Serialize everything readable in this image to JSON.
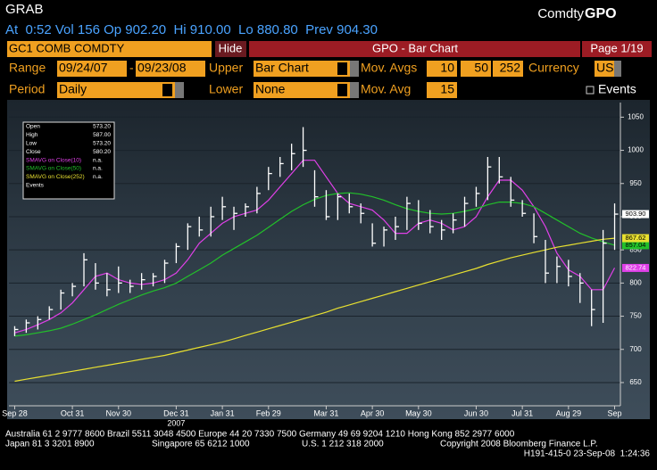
{
  "header": {
    "title": "GRAB",
    "brand": "Comdty",
    "brand_code": "GPO",
    "quote": "At  0:52 Vol 156 Op 902.20  Hi 910.00  Lo 880.80  Prev 904.30"
  },
  "toolbar": {
    "security": "GC1 COMB COMDTY",
    "hide_button": "Hide",
    "screen_title": "GPO - Bar Chart",
    "page": "Page 1/19"
  },
  "settings": {
    "range_label": "Range",
    "range_start": "09/24/07",
    "range_sep": "-",
    "range_end": "09/23/08",
    "upper_label": "Upper",
    "upper_value": "Bar Chart",
    "mov_avgs_label": "Mov. Avgs",
    "mov_avgs": [
      "10",
      "50",
      "252"
    ],
    "currency_label": "Currency",
    "currency": "USD",
    "period_label": "Period",
    "period": "Daily",
    "lower_label": "Lower",
    "lower_value": "None",
    "mov_avg_label": "Mov. Avg",
    "mov_avg": "15",
    "events": "Events"
  },
  "chart_data": {
    "type": "ohlc",
    "categories": [
      "Sep 28",
      null,
      null,
      null,
      null,
      "Oct 31",
      null,
      null,
      null,
      "Nov 30",
      null,
      null,
      null,
      null,
      "Dec 31",
      null,
      null,
      null,
      "Jan 31",
      null,
      null,
      null,
      "Feb 29",
      null,
      null,
      null,
      null,
      "Mar 31",
      null,
      null,
      null,
      "Apr 30",
      null,
      null,
      null,
      "May 30",
      null,
      null,
      null,
      null,
      "Jun 30",
      null,
      null,
      null,
      "Jul 31",
      null,
      null,
      null,
      "Aug 29",
      null,
      null,
      null,
      "Sep"
    ],
    "year_label": "2007",
    "price": {
      "color": "#ffffff",
      "last_label": "903.90",
      "high": [
        735,
        745,
        750,
        765,
        790,
        800,
        845,
        830,
        815,
        825,
        805,
        815,
        815,
        835,
        860,
        890,
        900,
        915,
        930,
        915,
        920,
        945,
        975,
        990,
        1010,
        1035,
        970,
        940,
        935,
        935,
        920,
        890,
        885,
        900,
        930,
        925,
        910,
        895,
        905,
        930,
        945,
        990,
        990,
        960,
        925,
        905,
        865,
        840,
        835,
        815,
        790,
        880,
        920
      ],
      "low": [
        720,
        725,
        730,
        745,
        760,
        780,
        795,
        790,
        780,
        785,
        785,
        790,
        795,
        800,
        830,
        850,
        870,
        870,
        895,
        880,
        900,
        905,
        940,
        960,
        970,
        975,
        915,
        895,
        895,
        905,
        890,
        855,
        855,
        865,
        880,
        880,
        875,
        865,
        875,
        885,
        915,
        925,
        950,
        915,
        900,
        860,
        800,
        800,
        795,
        770,
        735,
        740,
        850
      ],
      "close": [
        730,
        740,
        745,
        760,
        785,
        795,
        835,
        800,
        790,
        800,
        795,
        805,
        810,
        830,
        855,
        885,
        880,
        900,
        915,
        905,
        915,
        935,
        965,
        980,
        995,
        1000,
        930,
        900,
        930,
        915,
        905,
        860,
        880,
        885,
        920,
        890,
        885,
        880,
        895,
        920,
        935,
        975,
        960,
        925,
        905,
        870,
        815,
        825,
        810,
        800,
        760,
        860,
        903.9
      ]
    },
    "series": [
      {
        "name": "SMAVG on Close(10)",
        "status": "n.a.",
        "color": "#e040e8",
        "last_label": "822.74",
        "values": [
          725,
          730,
          737,
          745,
          755,
          770,
          790,
          810,
          815,
          805,
          800,
          798,
          800,
          805,
          815,
          835,
          860,
          875,
          890,
          900,
          905,
          910,
          925,
          945,
          965,
          985,
          985,
          960,
          935,
          920,
          915,
          910,
          895,
          875,
          875,
          890,
          895,
          890,
          880,
          885,
          900,
          930,
          955,
          955,
          940,
          915,
          885,
          845,
          820,
          810,
          790,
          790,
          822.74
        ]
      },
      {
        "name": "SMAVG on Close(50)",
        "status": "n.a.",
        "color": "#22c02a",
        "last_label": "857.04",
        "values": [
          720,
          722,
          725,
          728,
          732,
          738,
          745,
          752,
          760,
          768,
          775,
          782,
          788,
          793,
          800,
          810,
          820,
          830,
          842,
          852,
          862,
          872,
          884,
          896,
          908,
          918,
          926,
          932,
          935,
          936,
          934,
          930,
          925,
          918,
          912,
          908,
          905,
          904,
          905,
          908,
          912,
          918,
          922,
          922,
          920,
          915,
          905,
          895,
          885,
          875,
          868,
          862,
          857.04
        ]
      },
      {
        "name": "SMAVG on Close(252)",
        "status": "n.a.",
        "color": "#e8e030",
        "last_label": "867.62",
        "values": [
          652,
          655,
          658,
          661,
          664,
          667,
          670,
          673,
          676,
          679,
          682,
          685,
          688,
          691,
          695,
          699,
          703,
          707,
          711,
          716,
          721,
          726,
          731,
          736,
          741,
          746,
          751,
          756,
          762,
          767,
          772,
          777,
          782,
          787,
          792,
          797,
          802,
          807,
          812,
          817,
          822,
          828,
          833,
          838,
          842,
          846,
          850,
          854,
          857,
          860,
          863,
          866,
          867.62
        ]
      }
    ],
    "readout": [
      {
        "label": "Open",
        "value": "573.20"
      },
      {
        "label": "High",
        "value": "587.00"
      },
      {
        "label": "Low",
        "value": "573.20"
      },
      {
        "label": "Close",
        "value": "580.20"
      }
    ],
    "readout_events": "Events",
    "ylim": [
      615,
      1072
    ],
    "yticks": [
      650,
      700,
      750,
      800,
      850,
      900,
      950,
      1000,
      1050
    ],
    "grid": true
  },
  "footer": {
    "line1": "Australia 61 2 9777 8600 Brazil 5511 3048 4500 Europe 44 20 7330 7500 Germany 49 69 9204 1210 Hong Kong 852 2977 6000",
    "line2": [
      "Japan 81 3 3201 8900",
      "Singapore 65 6212 1000",
      "U.S. 1 212 318 2000",
      "Copyright 2008 Bloomberg Finance L.P."
    ],
    "line3": "H191-415-0 23-Sep-08  1:24:36"
  }
}
